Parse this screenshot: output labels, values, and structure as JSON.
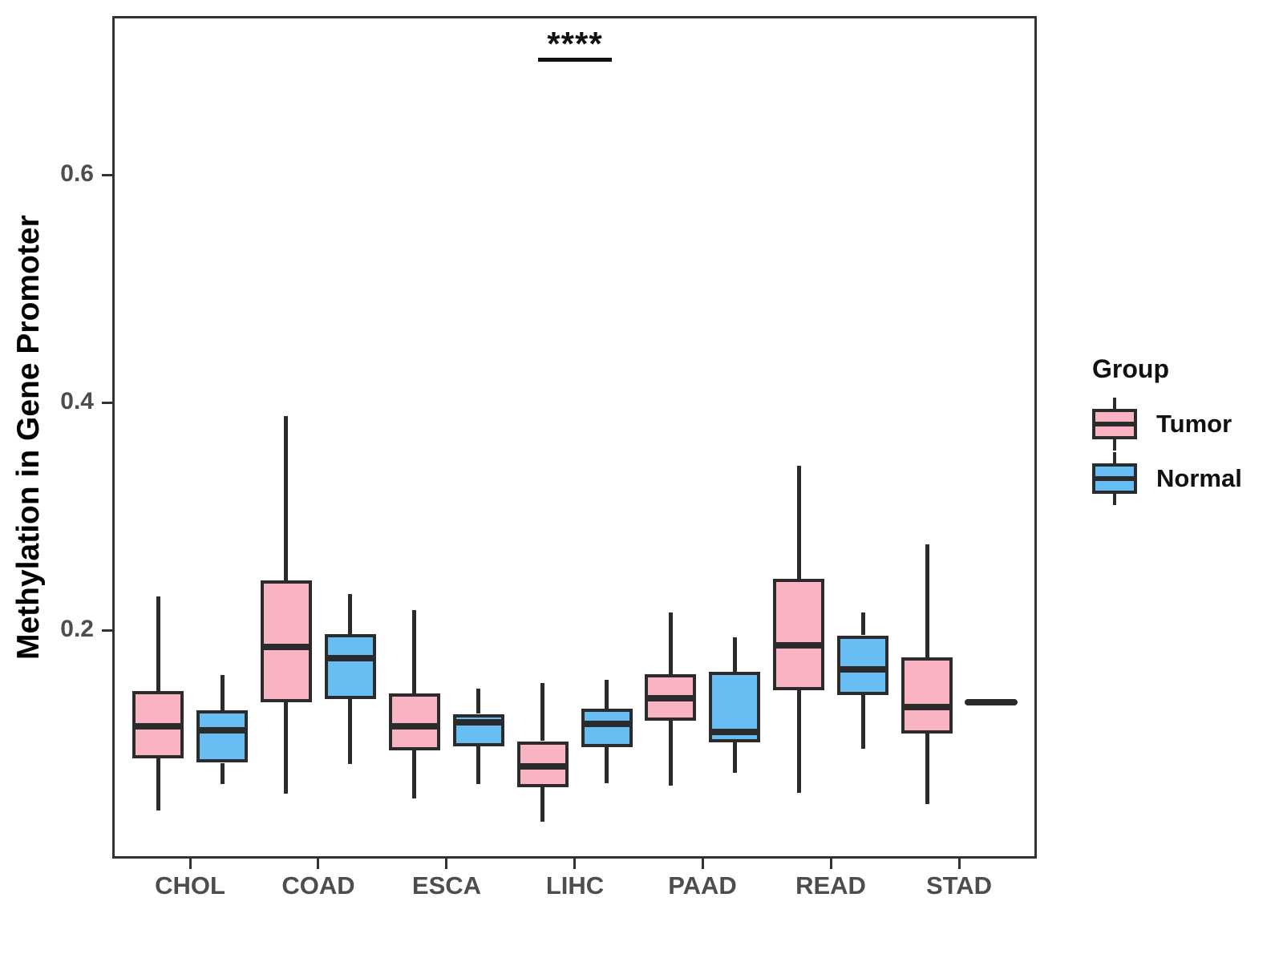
{
  "chart_data": {
    "type": "boxplot",
    "title": "",
    "xlabel": "",
    "ylabel": "Methylation in Gene Promoter",
    "ylim": [
      0,
      0.74
    ],
    "yticks": [
      0.2,
      0.4,
      0.6
    ],
    "ytick_labels": [
      "0.2",
      "0.4",
      "0.6"
    ],
    "grid": false,
    "categories": [
      "CHOL",
      "COAD",
      "ESCA",
      "LIHC",
      "PAAD",
      "READ",
      "STAD"
    ],
    "legend": {
      "title": "Group",
      "position": "right",
      "entries": [
        {
          "label": "Tumor",
          "color": "#F9B4C3"
        },
        {
          "label": "Normal",
          "color": "#68BDF2"
        }
      ]
    },
    "colors": {
      "tumor_fill": "#F9B4C3",
      "normal_fill": "#68BDF2",
      "stroke": "#2B2B2B",
      "panel_border": "#333333",
      "axis_text": "#4D4D4D"
    },
    "series": [
      {
        "name": "Tumor",
        "color": "#F9B4C3",
        "boxes": [
          {
            "category": "CHOL",
            "low": 0.042,
            "q1": 0.088,
            "median": 0.116,
            "q3": 0.147,
            "high": 0.23
          },
          {
            "category": "COAD",
            "low": 0.057,
            "q1": 0.137,
            "median": 0.186,
            "q3": 0.244,
            "high": 0.389
          },
          {
            "category": "ESCA",
            "low": 0.053,
            "q1": 0.095,
            "median": 0.116,
            "q3": 0.145,
            "high": 0.218
          },
          {
            "category": "LIHC",
            "low": 0.033,
            "q1": 0.063,
            "median": 0.081,
            "q3": 0.103,
            "high": 0.154
          },
          {
            "category": "PAAD",
            "low": 0.064,
            "q1": 0.121,
            "median": 0.141,
            "q3": 0.162,
            "high": 0.216
          },
          {
            "category": "READ",
            "low": 0.058,
            "q1": 0.148,
            "median": 0.187,
            "q3": 0.246,
            "high": 0.345
          },
          {
            "category": "STAD",
            "low": 0.048,
            "q1": 0.11,
            "median": 0.133,
            "q3": 0.177,
            "high": 0.276
          }
        ]
      },
      {
        "name": "Normal",
        "color": "#68BDF2",
        "boxes": [
          {
            "category": "CHOL",
            "low": 0.066,
            "q1": 0.084,
            "median": 0.113,
            "q3": 0.13,
            "high": 0.161
          },
          {
            "category": "COAD",
            "low": 0.083,
            "q1": 0.14,
            "median": 0.176,
            "q3": 0.197,
            "high": 0.232
          },
          {
            "category": "ESCA",
            "low": 0.065,
            "q1": 0.099,
            "median": 0.12,
            "q3": 0.127,
            "high": 0.149
          },
          {
            "category": "LIHC",
            "low": 0.066,
            "q1": 0.098,
            "median": 0.118,
            "q3": 0.132,
            "high": 0.157
          },
          {
            "category": "PAAD",
            "low": 0.075,
            "q1": 0.102,
            "median": 0.111,
            "q3": 0.164,
            "high": 0.194
          },
          {
            "category": "READ",
            "low": 0.096,
            "q1": 0.144,
            "median": 0.166,
            "q3": 0.196,
            "high": 0.216
          },
          {
            "category": "STAD",
            "low": 0.137,
            "q1": 0.137,
            "median": 0.137,
            "q3": 0.137,
            "high": 0.137
          }
        ]
      }
    ],
    "annotation": {
      "text": "****",
      "category": "LIHC",
      "underline": true
    }
  }
}
